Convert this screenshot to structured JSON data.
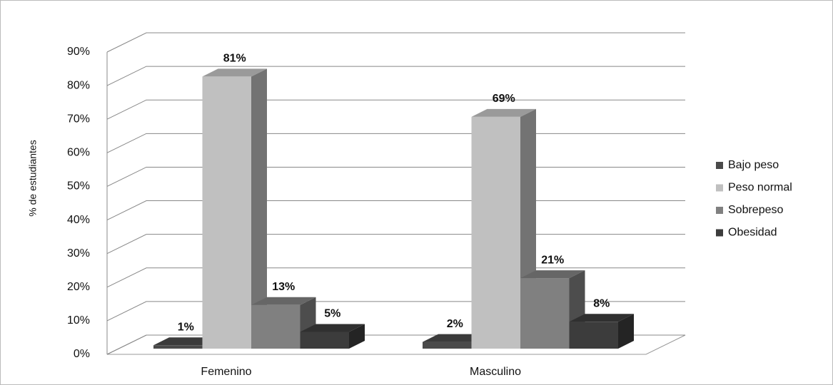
{
  "chart_data": {
    "type": "bar3d",
    "y_axis_label": "% de estudiantes",
    "categories": [
      "Femenino",
      "Masculino"
    ],
    "series": [
      {
        "name": "Bajo peso",
        "color": "#4a4a4a",
        "values": [
          1,
          2
        ],
        "value_labels": [
          "1%",
          "2%"
        ]
      },
      {
        "name": "Peso normal",
        "color": "#c0c0c0",
        "values": [
          81,
          69
        ],
        "value_labels": [
          "81%",
          "69%"
        ]
      },
      {
        "name": "Sobrepeso",
        "color": "#808080",
        "values": [
          13,
          21
        ],
        "value_labels": [
          "13%",
          "21%"
        ]
      },
      {
        "name": "Obesidad",
        "color": "#3c3c3c",
        "values": [
          5,
          8
        ],
        "value_labels": [
          "5%",
          "8%"
        ]
      }
    ],
    "ylim": [
      0,
      90
    ],
    "yticks": [
      {
        "value": 0,
        "label": "0%"
      },
      {
        "value": 10,
        "label": "10%"
      },
      {
        "value": 20,
        "label": "20%"
      },
      {
        "value": 30,
        "label": "30%"
      },
      {
        "value": 40,
        "label": "40%"
      },
      {
        "value": 50,
        "label": "50%"
      },
      {
        "value": 60,
        "label": "60%"
      },
      {
        "value": 70,
        "label": "70%"
      },
      {
        "value": 80,
        "label": "80%"
      },
      {
        "value": 90,
        "label": "90%"
      }
    ],
    "grid": true,
    "legend": "right"
  }
}
